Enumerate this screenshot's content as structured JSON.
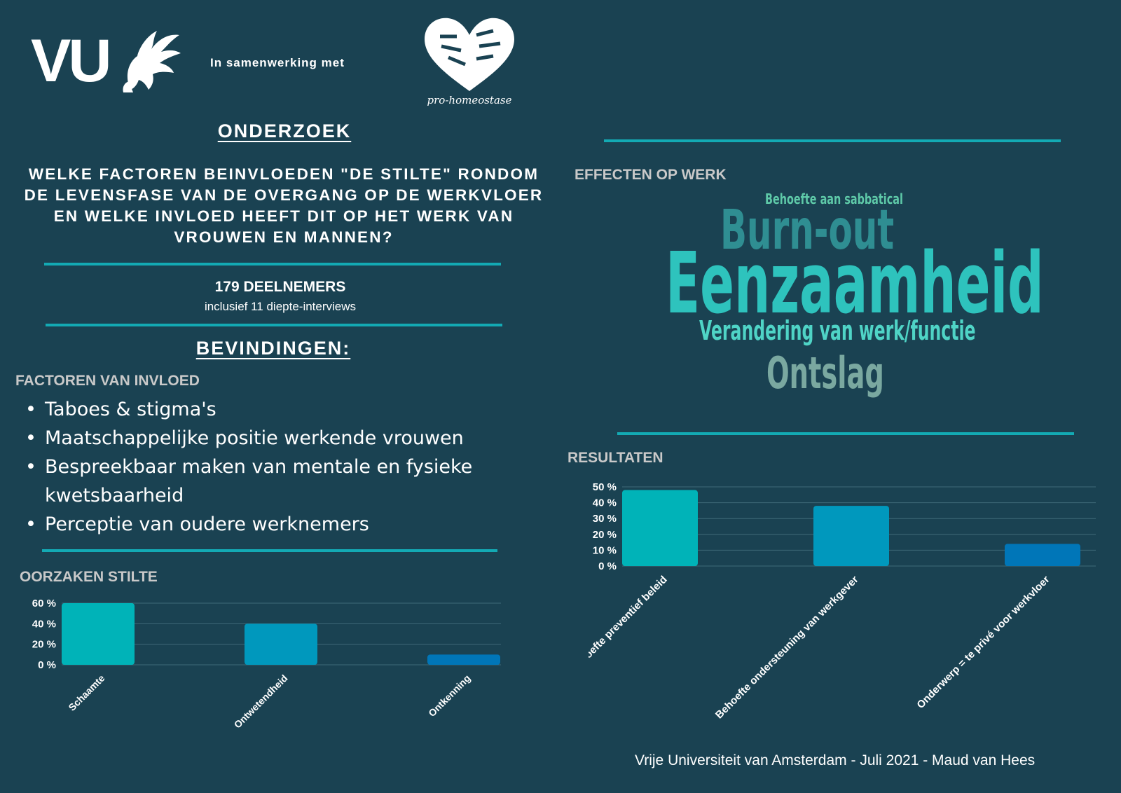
{
  "header": {
    "logo_left": "VU",
    "collab_text": "In samenwerking met",
    "logo_right_caption": "pro-homeostase"
  },
  "left": {
    "title": "ONDERZOEK",
    "question": "WELKE FACTOREN BEINVLOEDEN \"DE STILTE\" RONDOM DE LEVENSFASE VAN DE OVERGANG OP DE WERKVLOER EN WELKE INVLOED HEEFT DIT OP HET WERK VAN VROUWEN EN MANNEN?",
    "participants": "179 DEELNEMERS",
    "participants_sub": "inclusief 11 diepte-interviews",
    "findings_title": "BEVINDINGEN:",
    "factors_label": "FACTOREN VAN INVLOED",
    "factors": [
      "Taboes & stigma's",
      "Maatschappelijke positie werkende vrouwen",
      "Bespreekbaar maken van mentale en fysieke kwetsbaarheid",
      "Perceptie van oudere werknemers"
    ],
    "causes_label": "OORZAKEN STILTE"
  },
  "right": {
    "effects_label": "EFFECTEN OP WERK",
    "wordcloud": [
      "Behoefte aan sabbatical",
      "Burn-out",
      "Eenzaamheid",
      "Verandering van werk/functie",
      "Ontslag"
    ],
    "results_label": "RESULTATEN",
    "footer": "Vrije Universiteit van Amsterdam - Juli 2021 - Maud van Hees"
  },
  "colors": {
    "background": "#1a4252",
    "rule": "#13aab4",
    "bar1": "#00b3b8",
    "bar2": "#0098bd",
    "bar3": "#0076b8"
  },
  "chart_data": [
    {
      "id": "causes",
      "type": "bar",
      "categories": [
        "Schaamte",
        "Ontwetendheid",
        "Ontkenning"
      ],
      "values": [
        60,
        40,
        10
      ],
      "yticks": [
        "0 %",
        "20 %",
        "40 %",
        "60 %"
      ],
      "ylim": [
        0,
        60
      ],
      "grid": true
    },
    {
      "id": "results",
      "type": "bar",
      "categories": [
        "Behoefte preventief beleid",
        "Behoefte ondersteuning van werkgever",
        "Onderwerp = te privé voor werkvloer"
      ],
      "values": [
        48,
        38,
        14
      ],
      "yticks": [
        "0 %",
        "10 %",
        "20 %",
        "30 %",
        "40 %",
        "50 %"
      ],
      "ylim": [
        0,
        50
      ],
      "grid": true
    }
  ]
}
